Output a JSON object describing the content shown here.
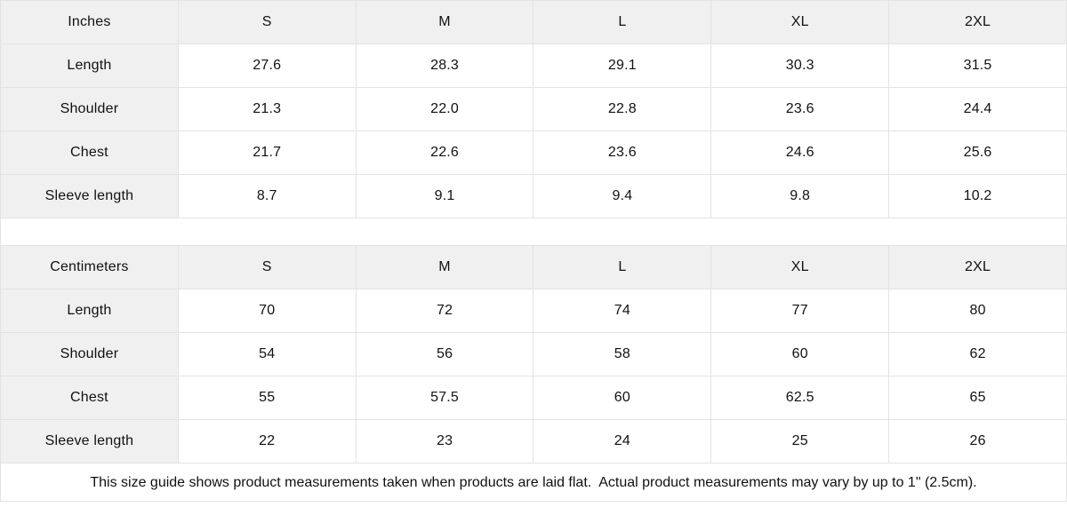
{
  "chart_data": [
    {
      "type": "table",
      "title": "Inches",
      "columns": [
        "Inches",
        "S",
        "M",
        "L",
        "XL",
        "2XL"
      ],
      "rows": [
        [
          "Length",
          "27.6",
          "28.3",
          "29.1",
          "30.3",
          "31.5"
        ],
        [
          "Shoulder",
          "21.3",
          "22.0",
          "22.8",
          "23.6",
          "24.4"
        ],
        [
          "Chest",
          "21.7",
          "22.6",
          "23.6",
          "24.6",
          "25.6"
        ],
        [
          "Sleeve length",
          "8.7",
          "9.1",
          "9.4",
          "9.8",
          "10.2"
        ]
      ]
    },
    {
      "type": "table",
      "title": "Centimeters",
      "columns": [
        "Centimeters",
        "S",
        "M",
        "L",
        "XL",
        "2XL"
      ],
      "rows": [
        [
          "Length",
          "70",
          "72",
          "74",
          "77",
          "80"
        ],
        [
          "Shoulder",
          "54",
          "56",
          "58",
          "60",
          "62"
        ],
        [
          "Chest",
          "55",
          "57.5",
          "60",
          "62.5",
          "65"
        ],
        [
          "Sleeve length",
          "22",
          "23",
          "24",
          "25",
          "26"
        ]
      ]
    }
  ],
  "footer": {
    "note": "This size guide shows product measurements taken when products are laid flat.  Actual product measurements may vary by up to 1\" (2.5cm)."
  },
  "colors": {
    "header_bg": "#f0f0f0",
    "border": "#e3e3e3",
    "text": "#111111",
    "background": "#ffffff"
  }
}
